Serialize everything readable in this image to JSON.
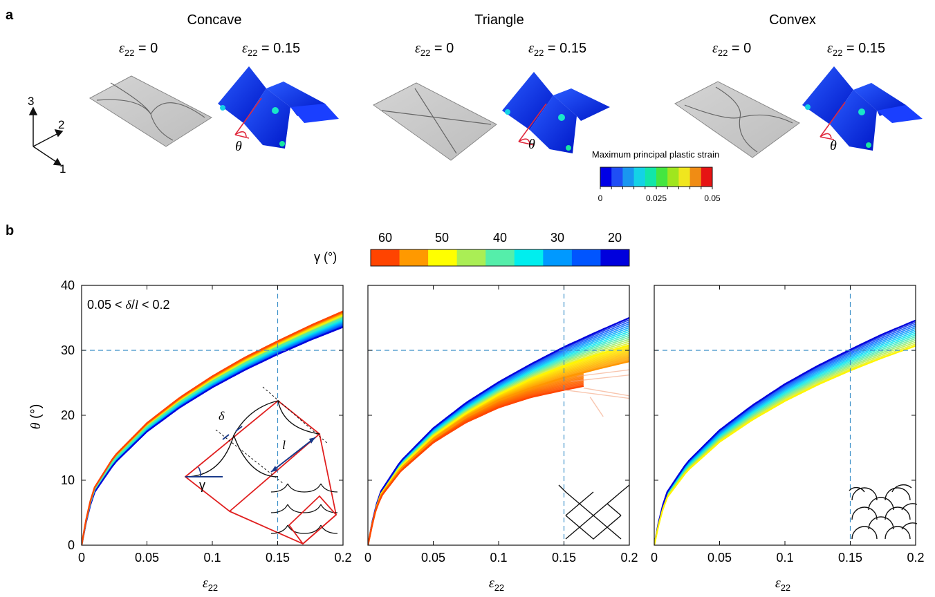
{
  "panel_a": {
    "label": "a",
    "groups": [
      {
        "title": "Concave",
        "strain_left": "0",
        "strain_right": "0.15"
      },
      {
        "title": "Triangle",
        "strain_left": "0",
        "strain_right": "0.15"
      },
      {
        "title": "Convex",
        "strain_left": "0",
        "strain_right": "0.15"
      }
    ],
    "axes_triad": {
      "ax1": "1",
      "ax2": "2",
      "ax3": "3"
    },
    "theta_label": "θ",
    "colorbar": {
      "title": "Maximum principal plastic strain",
      "ticks": [
        "0",
        "0.025",
        "0.05"
      ],
      "colors": [
        "#0000e6",
        "#1f4ef5",
        "#1996f0",
        "#14d2e6",
        "#12e6a8",
        "#44e640",
        "#a0e61e",
        "#f0e61e",
        "#f08c14",
        "#e61414"
      ]
    }
  },
  "panel_b": {
    "label": "b",
    "gamma_colorbar": {
      "label": "γ (°)",
      "ticks": [
        "60",
        "50",
        "40",
        "30",
        "20"
      ],
      "colors": [
        "#ff4400",
        "#ff9900",
        "#ffff00",
        "#aaee55",
        "#55eeaa",
        "#00eeee",
        "#0099ff",
        "#0055ff",
        "#0000dd"
      ]
    },
    "annotation": "0.05 < δ/l < 0.2",
    "inset_labels": {
      "delta": "δ",
      "l": "l",
      "gamma": "γ"
    }
  },
  "chart_data": [
    {
      "type": "line",
      "name": "concave",
      "xlabel": "ε22",
      "ylabel": "θ (°)",
      "xlim": [
        0,
        0.2
      ],
      "ylim": [
        0,
        40
      ],
      "xticks": [
        "0",
        "0.05",
        "0.1",
        "0.15",
        "0.2"
      ],
      "yticks": [
        "0",
        "10",
        "20",
        "30",
        "40"
      ],
      "reference_lines": {
        "x": 0.15,
        "y": 30
      },
      "series": [
        {
          "gamma": 20,
          "x": [
            0,
            0.005,
            0.01,
            0.025,
            0.05,
            0.075,
            0.1,
            0.125,
            0.15,
            0.175,
            0.2
          ],
          "y": [
            0,
            5.2,
            8.2,
            12.6,
            17.5,
            21.2,
            24.3,
            27,
            29.4,
            31.6,
            33.6
          ]
        },
        {
          "gamma": 40,
          "x": [
            0,
            0.005,
            0.01,
            0.025,
            0.05,
            0.075,
            0.1,
            0.125,
            0.15,
            0.175,
            0.2
          ],
          "y": [
            0,
            5.5,
            8.6,
            13.2,
            18.2,
            22,
            25.2,
            28,
            30.5,
            32.8,
            35
          ]
        },
        {
          "gamma": 60,
          "x": [
            0,
            0.005,
            0.01,
            0.025,
            0.05,
            0.075,
            0.1,
            0.125,
            0.15,
            0.175,
            0.2
          ],
          "y": [
            0,
            5.7,
            8.9,
            13.7,
            18.8,
            22.7,
            26,
            28.9,
            31.4,
            33.8,
            36
          ]
        }
      ]
    },
    {
      "type": "line",
      "name": "triangle",
      "xlabel": "ε22",
      "ylabel": "",
      "xlim": [
        0,
        0.2
      ],
      "ylim": [
        0,
        40
      ],
      "xticks": [
        "0",
        "0.05",
        "0.1",
        "0.15",
        "0.2"
      ],
      "yticks": [],
      "reference_lines": {
        "x": 0.15,
        "y": 30
      },
      "series": [
        {
          "gamma": 20,
          "x": [
            0,
            0.005,
            0.01,
            0.025,
            0.05,
            0.075,
            0.1,
            0.125,
            0.15,
            0.175,
            0.2
          ],
          "y": [
            0,
            5.3,
            8.3,
            12.9,
            18,
            21.9,
            25.1,
            27.9,
            30.5,
            32.8,
            35
          ]
        },
        {
          "gamma": 50,
          "x": [
            0,
            0.005,
            0.01,
            0.025,
            0.05,
            0.075,
            0.1,
            0.125,
            0.15,
            0.175,
            0.2
          ],
          "y": [
            0,
            5,
            7.9,
            12.1,
            16.8,
            20.3,
            23.2,
            25.6,
            27.6,
            29.3,
            30.8
          ]
        },
        {
          "gamma": 55,
          "x": [
            0,
            0.005,
            0.01,
            0.025,
            0.05,
            0.075,
            0.1,
            0.125,
            0.15,
            0.175,
            0.2
          ],
          "y": [
            0,
            4.9,
            7.7,
            11.8,
            16.3,
            19.7,
            22.3,
            24.2,
            25.8,
            27.1,
            28.3
          ]
        },
        {
          "gamma": 60,
          "x": [
            0,
            0.005,
            0.01,
            0.025,
            0.05,
            0.075,
            0.1,
            0.125,
            0.15,
            0.165
          ],
          "y": [
            0,
            4.8,
            7.5,
            11.4,
            15.8,
            18.9,
            21.2,
            22.8,
            23.9,
            24.5
          ]
        }
      ]
    },
    {
      "type": "line",
      "name": "convex",
      "xlabel": "ε22",
      "ylabel": "",
      "xlim": [
        0,
        0.2
      ],
      "ylim": [
        0,
        40
      ],
      "xticks": [
        "0",
        "0.05",
        "0.1",
        "0.15",
        "0.2"
      ],
      "yticks": [],
      "reference_lines": {
        "x": 0.15,
        "y": 30
      },
      "series": [
        {
          "gamma": 20,
          "x": [
            0,
            0.005,
            0.01,
            0.025,
            0.05,
            0.075,
            0.1,
            0.125,
            0.15,
            0.175,
            0.2
          ],
          "y": [
            0,
            5.2,
            8.2,
            12.7,
            17.7,
            21.5,
            24.8,
            27.6,
            30.1,
            32.5,
            34.6
          ]
        },
        {
          "gamma": 50,
          "x": [
            0,
            0.005,
            0.01,
            0.025,
            0.05,
            0.075,
            0.1,
            0.125,
            0.15,
            0.175,
            0.2
          ],
          "y": [
            0,
            4.7,
            7.4,
            11.4,
            15.9,
            19.3,
            22.2,
            24.7,
            26.9,
            28.9,
            30.7
          ]
        }
      ]
    }
  ]
}
